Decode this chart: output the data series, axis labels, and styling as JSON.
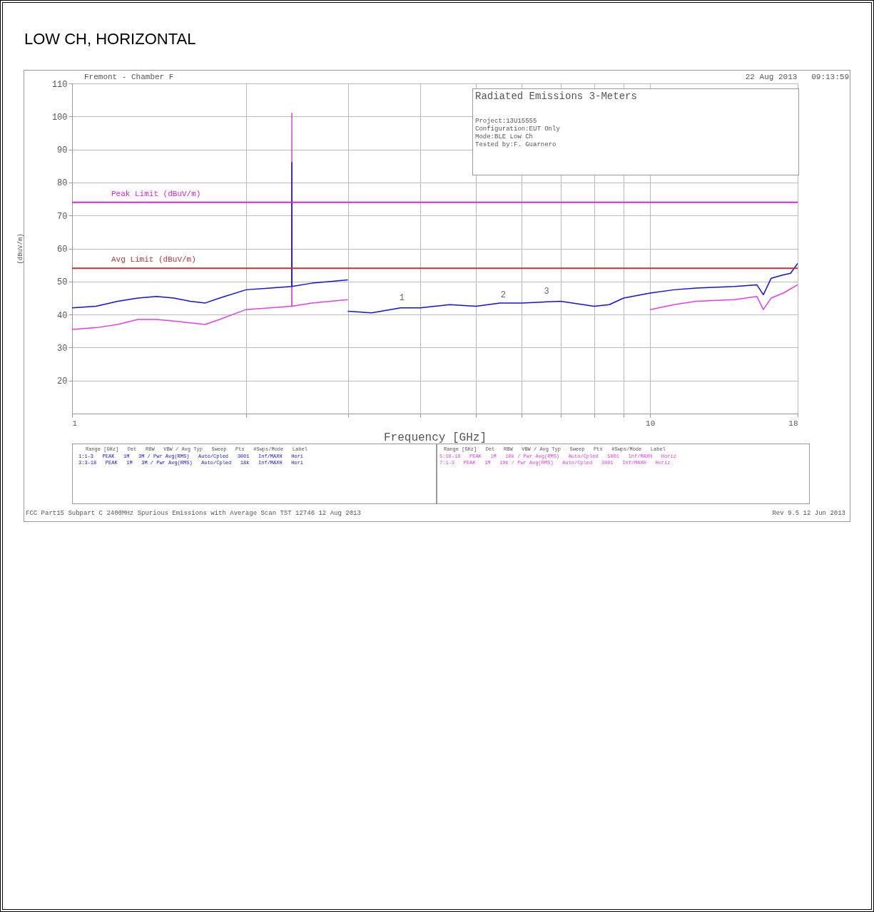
{
  "chart_data": {
    "type": "line",
    "title": "LOW CH, HORIZONTAL",
    "xlabel": "Frequency [GHz]",
    "ylabel": "(dBuV/m)",
    "log": "x",
    "grid": true,
    "line_style": "solid",
    "xlim": [
      1,
      18
    ],
    "xticks": [
      1,
      {
        "value": 2,
        "label": null
      },
      {
        "value": 3,
        "label": null
      },
      {
        "value": 4,
        "label": null
      },
      {
        "value": 5,
        "label": null
      },
      {
        "value": 6,
        "label": null
      },
      {
        "value": 7,
        "label": null
      },
      {
        "value": 8,
        "label": null
      },
      {
        "value": 9,
        "label": null
      },
      10,
      18
    ],
    "ylim": [
      10,
      110
    ],
    "yticks": [
      20,
      30,
      40,
      50,
      60,
      70,
      80,
      90,
      100,
      110
    ],
    "series": [
      {
        "color": "#1010e8",
        "x": [
          1,
          1.1,
          1.2,
          1.3,
          1.4,
          1.5,
          1.6,
          1.7,
          1.8,
          2,
          2.2,
          2.399,
          2.4,
          2.401,
          2.6,
          2.8,
          3
        ],
        "values": [
          42,
          42.5,
          44,
          45,
          45.5,
          45,
          44,
          43.5,
          45,
          47.5,
          48,
          48.5,
          86,
          48.5,
          49.5,
          50,
          50.5
        ]
      },
      {
        "color": "#1010e8",
        "x": [
          3,
          3.3,
          3.7,
          4,
          4.5,
          5,
          5.5,
          6,
          7,
          8,
          8.5,
          9,
          10,
          11,
          12,
          14,
          15.3,
          15.7,
          16.2,
          17,
          17.5,
          18
        ],
        "values": [
          41,
          40.5,
          42,
          42,
          43,
          42.5,
          43.5,
          43.5,
          44,
          42.5,
          43,
          45,
          46.5,
          47.5,
          48,
          48.5,
          49,
          46,
          51,
          52,
          52.5,
          55.5
        ]
      },
      {
        "color": "#e83ce8",
        "x": [
          1,
          1.1,
          1.2,
          1.3,
          1.4,
          1.5,
          1.6,
          1.7,
          1.8,
          2,
          2.2,
          2.399,
          2.4,
          2.401,
          2.6,
          2.8,
          3
        ],
        "values": [
          35.5,
          36,
          37,
          38.5,
          38.5,
          38,
          37.5,
          37,
          38.5,
          41.5,
          42,
          42.5,
          101,
          42.5,
          43.5,
          44,
          44.5
        ]
      },
      {
        "color": "#e83ce8",
        "x": [
          10,
          11,
          12,
          14,
          15.3,
          15.7,
          16.2,
          17,
          18
        ],
        "values": [
          41.5,
          43,
          44,
          44.5,
          45.5,
          41.5,
          45,
          46.5,
          49
        ]
      }
    ],
    "ref_lines": [
      {
        "axis": "y",
        "value": 74,
        "label": "Peak Limit (dBuV/m)",
        "color": "#e020e0"
      },
      {
        "axis": "y",
        "value": 54,
        "label": "Avg Limit (dBuV/m)",
        "color": "#c83030"
      }
    ],
    "annotations": [
      "Fremont - Chamber F",
      "22 Aug 2013   09:13:59",
      "Radiated Emissions 3-Meters",
      "Project:13U15555",
      "Configuration:EUT Only",
      "Mode:BLE Low Ch",
      "Tested by:F. Guarnero",
      "Range [GHz]   Det   RBW   VBW / Avg Typ   Sweep   Pts   #Swps/Mode   Label",
      "1:1-3   PEAK   1M   3M / Pwr Avg(RMS)   Auto/Cpled   3001   Inf/MAXH   Hori",
      "3:3-18   PEAK   1M   3M / Pwr Avg(RMS)   Auto/Cpled   18k   Inf/MAXH   Hori",
      "Range [GHz]   Det   RBW   VBW / Avg Typ   Sweep   Pts   #Swps/Mode   Label",
      "5:10-18   PEAK   1M   10k / Pwr Avg(RMS)   Auto/Cpled   5001   Inf/MAXH   Horiz",
      "7:1-3   PEAK   1M   10k / Pwr Avg(RMS)   Auto/Cpled   3001   Inf/MAXH   Horiz",
      "FCC Part15 Subpart C 2400MHz Spurious Emissions with Average Scan TST 12746 12 Aug 2013",
      "Rev 9.5 12 Jun 2013",
      {
        "text": "1",
        "x": 3.72,
        "y": 43
      },
      {
        "text": "2",
        "x": 5.57,
        "y": 44
      },
      {
        "text": "3",
        "x": 6.62,
        "y": 45
      }
    ]
  }
}
